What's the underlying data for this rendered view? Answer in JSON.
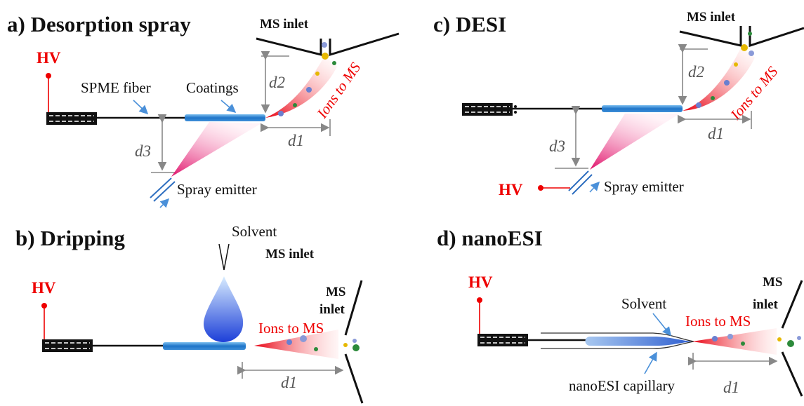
{
  "panel_a": {
    "title": "a) Desorption spray",
    "ms_inlet": "MS inlet",
    "hv": "HV",
    "spme_fiber": "SPME fiber",
    "coatings": "Coatings",
    "d1": "d1",
    "d2": "d2",
    "d3": "d3",
    "ions": "Ions to MS",
    "spray_emitter": "Spray emitter"
  },
  "panel_b": {
    "title": "b) Dripping",
    "solvent": "Solvent",
    "ms_inlet": "MS inlet",
    "hv": "HV",
    "ms_inlet_lines": [
      "MS",
      "inlet"
    ],
    "ions": "Ions to MS",
    "d1": "d1"
  },
  "panel_c": {
    "title": "c) DESI",
    "ms_inlet": "MS inlet",
    "d2": "d2",
    "ions": "Ions to MS",
    "d1": "d1",
    "d3": "d3",
    "hv": "HV",
    "spray_emitter": "Spray emitter"
  },
  "panel_d": {
    "title": "d) nanoESI",
    "hv": "HV",
    "solvent": "Solvent",
    "ms_inlet_lines": [
      "MS",
      "inlet"
    ],
    "ions": "Ions to MS",
    "d1": "d1",
    "capillary": "nanoESI capillary"
  }
}
